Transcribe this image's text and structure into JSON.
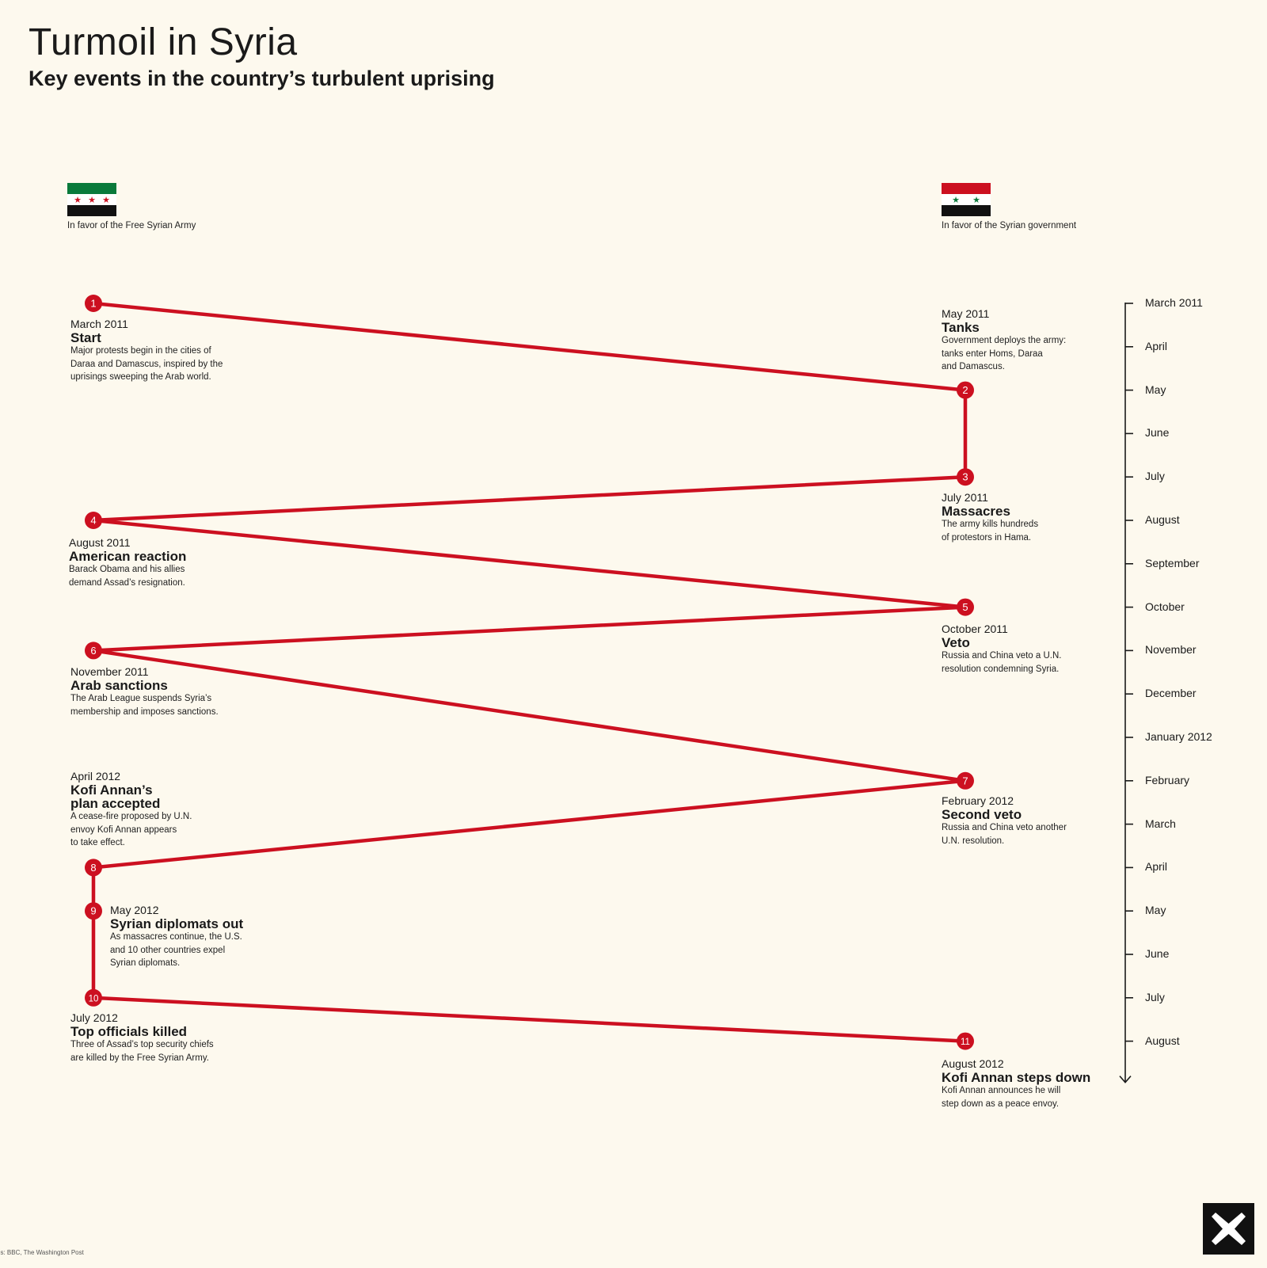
{
  "header": {
    "title": "Turmoil in Syria",
    "subtitle": "Key events in the country’s turbulent uprising"
  },
  "legend": {
    "free_army_caption": "In favor of the Free Syrian Army",
    "government_caption": "In favor of the Syrian government"
  },
  "colors": {
    "accent_red": "#cc1020",
    "background": "#fdf9ee",
    "flag_green": "#0a7a3b",
    "flag_black": "#111111",
    "flag_red": "#cc1020"
  },
  "timeline": {
    "months": [
      "March 2011",
      "April",
      "May",
      "June",
      "July",
      "August",
      "September",
      "October",
      "November",
      "December",
      "January 2012",
      "February",
      "March",
      "April",
      "May",
      "June",
      "July",
      "August"
    ]
  },
  "events": [
    {
      "number": "1",
      "side": "left",
      "month_index": 0,
      "date": "March 2011",
      "title": "Start",
      "description": "Major protests begin in the cities of\nDaraa and Damascus, inspired by the\nuprisings sweeping the Arab world."
    },
    {
      "number": "2",
      "side": "right",
      "month_index": 2,
      "date": "May 2011",
      "title": "Tanks",
      "description": "Government deploys the army:\ntanks enter Homs, Daraa\nand Damascus."
    },
    {
      "number": "3",
      "side": "right",
      "month_index": 4,
      "date": "July 2011",
      "title": "Massacres",
      "description": "The army kills hundreds\nof protestors in Hama."
    },
    {
      "number": "4",
      "side": "left",
      "month_index": 5,
      "date": "August 2011",
      "title": "American reaction",
      "description": "Barack Obama and his allies\ndemand Assad’s resignation."
    },
    {
      "number": "5",
      "side": "right",
      "month_index": 7,
      "date": "October 2011",
      "title": "Veto",
      "description": "Russia and China veto a U.N.\nresolution condemning Syria."
    },
    {
      "number": "6",
      "side": "left",
      "month_index": 8,
      "date": "November 2011",
      "title": "Arab sanctions",
      "description": "The Arab League suspends Syria’s\nmembership and imposes sanctions."
    },
    {
      "number": "7",
      "side": "right",
      "month_index": 11,
      "date": "February 2012",
      "title": "Second veto",
      "description": "Russia and China veto another\nU.N. resolution."
    },
    {
      "number": "8",
      "side": "left",
      "month_index": 13,
      "date": "April 2012",
      "title": "Kofi Annan’s\nplan accepted",
      "description": "A cease-fire proposed by U.N.\nenvoy Kofi Annan appears\nto take effect."
    },
    {
      "number": "9",
      "side": "left",
      "month_index": 14,
      "date": "May 2012",
      "title": "Syrian diplomats out",
      "description": "As massacres continue, the U.S.\nand 10 other countries expel\nSyrian diplomats."
    },
    {
      "number": "10",
      "side": "left",
      "month_index": 16,
      "date": "July 2012",
      "title": "Top officials killed",
      "description": "Three of Assad’s top security chiefs\nare killed by the Free Syrian Army."
    },
    {
      "number": "11",
      "side": "right",
      "month_index": 17,
      "date": "August 2012",
      "title": "Kofi Annan steps down",
      "description": "Kofi Annan announces he will\nstep down as a peace envoy."
    }
  ],
  "footer": {
    "source": "ces: BBC, The Washington Post"
  }
}
